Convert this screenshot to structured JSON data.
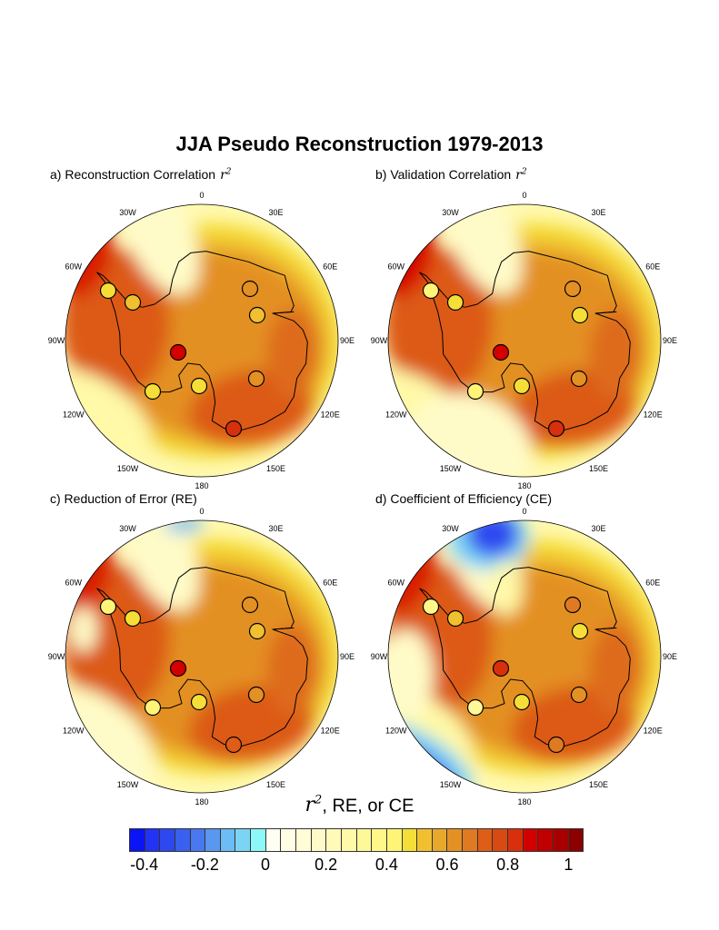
{
  "title": "JJA Pseudo Reconstruction 1979-2013",
  "panels": [
    {
      "label": "a) Reconstruction Correlation",
      "var": "r",
      "sup": "2",
      "stations": [
        0.47,
        0.53,
        0.88,
        0.45,
        0.49,
        0.62,
        0.52,
        0.62,
        0.82
      ]
    },
    {
      "label": "b) Validation Correlation",
      "var": "r",
      "sup": "2",
      "stations": [
        0.42,
        0.5,
        0.85,
        0.4,
        0.45,
        0.62,
        0.5,
        0.62,
        0.8
      ]
    },
    {
      "label": "c) Reduction of Error (RE)",
      "var": "",
      "sup": "",
      "stations": [
        0.42,
        0.5,
        0.85,
        0.4,
        0.47,
        0.62,
        0.52,
        0.62,
        0.72
      ]
    },
    {
      "label": "d) Coefficient of Efficiency (CE)",
      "var": "",
      "sup": "",
      "stations": [
        0.35,
        0.52,
        0.8,
        0.3,
        0.48,
        0.65,
        0.5,
        0.6,
        0.66
      ]
    }
  ],
  "longitude_labels": [
    "0",
    "30E",
    "60E",
    "90E",
    "120E",
    "150E",
    "180",
    "150W",
    "120W",
    "90W",
    "60W",
    "30W"
  ],
  "colorbar": {
    "title_var": "r",
    "title_sup": "2",
    "title_rest": ", RE, or CE",
    "min": -0.45,
    "max": 1.05,
    "step": 0.05,
    "ticks": [
      "-0.4",
      "-0.2",
      "0",
      "0.2",
      "0.4",
      "0.6",
      "0.8",
      "1"
    ],
    "tick_values": [
      -0.4,
      -0.2,
      0,
      0.2,
      0.4,
      0.6,
      0.8,
      1
    ],
    "colors": [
      "#0a14f5",
      "#2233f5",
      "#2e48f0",
      "#3a60f0",
      "#4a78f0",
      "#5a98f0",
      "#6cbcf5",
      "#7cd4f5",
      "#8cf8f8",
      "#fffef2",
      "#fffde4",
      "#fffcd6",
      "#fffbc8",
      "#fffab8",
      "#fff9a8",
      "#fff898",
      "#fff788",
      "#fff478",
      "#f5de38",
      "#f0c030",
      "#e8a82c",
      "#e39024",
      "#e07a22",
      "#de5e18",
      "#d84a14",
      "#d8300c",
      "#d40000",
      "#c00000",
      "#a80000",
      "#8c0000"
    ]
  }
}
